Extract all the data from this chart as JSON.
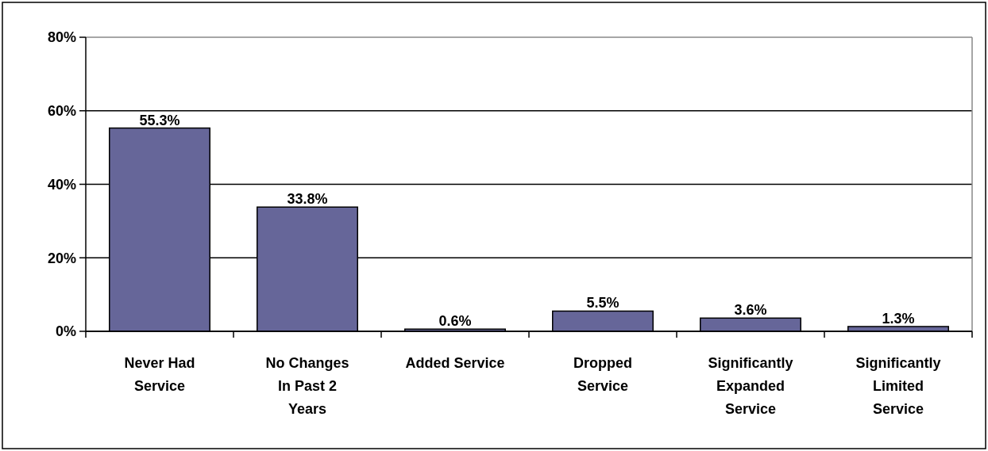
{
  "chart_data": {
    "type": "bar",
    "categories": [
      "Never Had\nService",
      "No Changes\nIn Past 2\nYears",
      "Added Service",
      "Dropped\nService",
      "Significantly\nExpanded\nService",
      "Significantly\nLimited\nService"
    ],
    "values": [
      55.3,
      33.8,
      0.6,
      5.5,
      3.6,
      1.3
    ],
    "value_labels": [
      "55.3%",
      "33.8%",
      "0.6%",
      "5.5%",
      "3.6%",
      "1.3%"
    ],
    "color": "#666699",
    "ylim": [
      0,
      80
    ],
    "yticks": [
      {
        "value": 0,
        "label": "0%"
      },
      {
        "value": 20,
        "label": "20%"
      },
      {
        "value": 40,
        "label": "40%"
      },
      {
        "value": 60,
        "label": "60%"
      },
      {
        "value": 80,
        "label": "80%"
      }
    ],
    "grid": "y"
  }
}
